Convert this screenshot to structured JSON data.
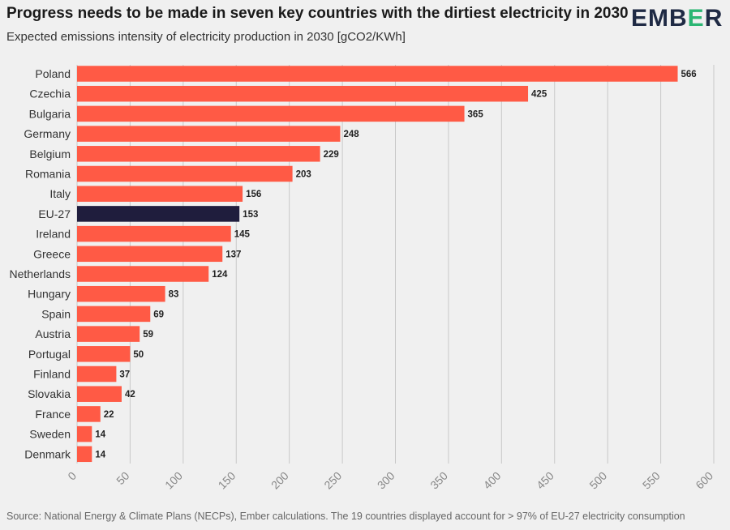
{
  "header": {
    "title": "Progress needs to be made in seven key countries with the dirtiest electricity in 2030",
    "subtitle": "Expected emissions intensity of electricity production in 2030 [gCO2/KWh]",
    "logo_text_pre": "EMB",
    "logo_text_accent": "E",
    "logo_text_post": "R"
  },
  "footer": {
    "source": "Source: National Energy & Climate Plans (NECPs), Ember calculations. The 19 countries displayed account for > 97% of EU-27 electricity consumption"
  },
  "colors": {
    "bar": "#ff5a45",
    "highlight_bar": "#1f1d3d",
    "grid": "#c8c8c8",
    "background": "#f0f0f0",
    "logo_accent": "#2bb673"
  },
  "chart_data": {
    "type": "bar",
    "orientation": "horizontal",
    "categories": [
      "Poland",
      "Czechia",
      "Bulgaria",
      "Germany",
      "Belgium",
      "Romania",
      "Italy",
      "EU-27",
      "Ireland",
      "Greece",
      "Netherlands",
      "Hungary",
      "Spain",
      "Austria",
      "Portugal",
      "Finland",
      "Slovakia",
      "France",
      "Sweden",
      "Denmark"
    ],
    "values": [
      566,
      425,
      365,
      248,
      229,
      203,
      156,
      153,
      145,
      137,
      124,
      83,
      69,
      59,
      50,
      37,
      42,
      22,
      14,
      14
    ],
    "highlight_category": "EU-27",
    "xlim": [
      0,
      600
    ],
    "xticks": [
      0,
      50,
      100,
      150,
      200,
      250,
      300,
      350,
      400,
      450,
      500,
      550,
      600
    ],
    "grid": true,
    "data_labels": true
  }
}
